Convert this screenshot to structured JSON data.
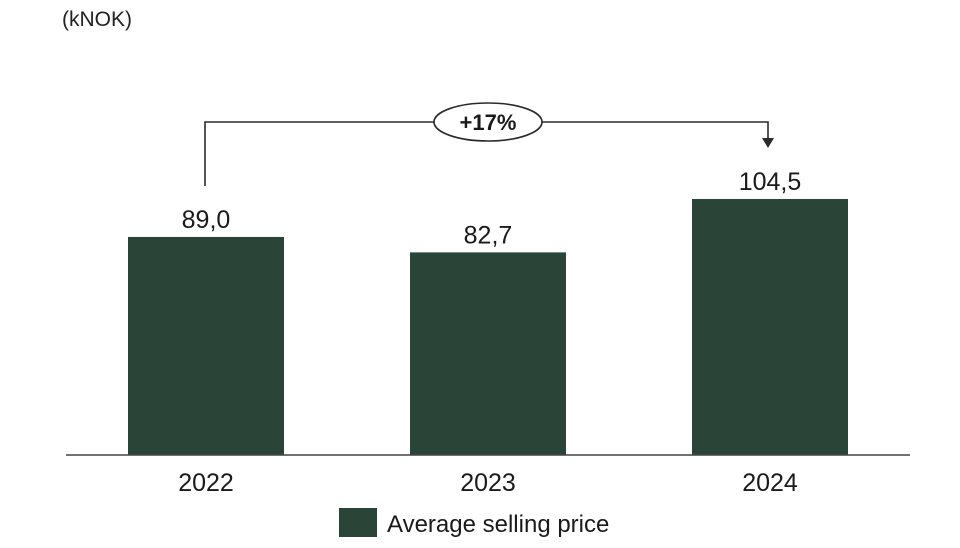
{
  "colors": {
    "bar": "#2b4438",
    "axis": "#444444",
    "connector": "#2a2a2a"
  },
  "chart_data": {
    "type": "bar",
    "unit_label": "(kNOK)",
    "categories": [
      "2022",
      "2023",
      "2024"
    ],
    "series": [
      {
        "name": "Average selling price",
        "values": [
          89.0,
          82.7,
          104.5
        ],
        "value_labels": [
          "89,0",
          "82,7",
          "104,5"
        ]
      }
    ],
    "ylim": [
      0,
      120
    ],
    "grid": false,
    "legend_position": "bottom-center",
    "annotation": {
      "text": "+17%",
      "from_category": "2022",
      "to_category": "2024"
    }
  }
}
